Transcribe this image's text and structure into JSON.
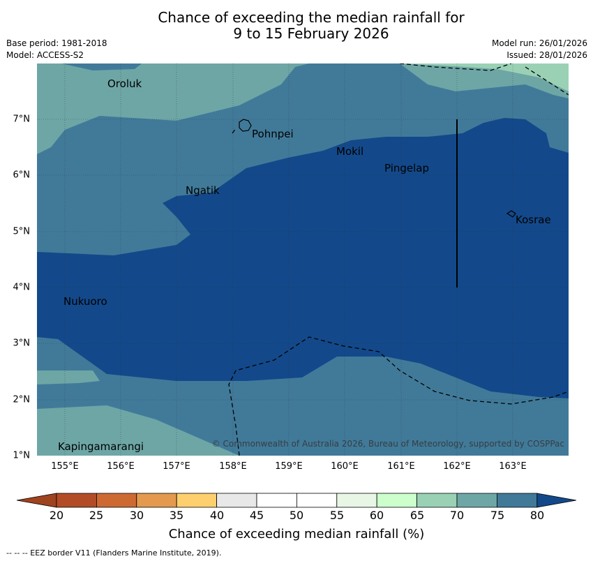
{
  "title_line1": "Chance of exceeding the median rainfall for",
  "title_line2": "9 to 15 February 2026",
  "base_period": "Base period: 1981-2018",
  "model": "Model: ACCESS-S2",
  "model_run": "Model run: 26/01/2026",
  "issued": "Issued: 28/01/2026",
  "places": [
    "Oroluk",
    "Pohnpei",
    "Mokil",
    "Pingelap",
    "Ngatik",
    "Kosrae",
    "Nukuoro",
    "Kapingamarangi"
  ],
  "copyright": "© Commonwealth of Australia 2026, Bureau of Meteorology, supported by COSPPac",
  "lat_labels": [
    "7°N",
    "6°N",
    "5°N",
    "4°N",
    "3°N",
    "2°N",
    "1°N"
  ],
  "lon_labels": [
    "155°E",
    "156°E",
    "157°E",
    "158°E",
    "159°E",
    "160°E",
    "161°E",
    "162°E",
    "163°E"
  ],
  "colorbar": {
    "ticks": [
      "20",
      "25",
      "30",
      "35",
      "40",
      "45",
      "50",
      "55",
      "60",
      "65",
      "70",
      "75",
      "80"
    ],
    "colors": [
      "#a0431f",
      "#b24c27",
      "#cd6a32",
      "#e39a4e",
      "#fdcf6e",
      "#e8e8e8",
      "#ffffff",
      "#ffffff",
      "#e8f6e6",
      "#ccffcc",
      "#9ad1b5",
      "#6ea6a6",
      "#417a99",
      "#13498a"
    ],
    "label": "Chance of exceeding median rainfall (%)"
  },
  "footnote": "--  --  -- EEZ border V11 (Flanders Marine Institute, 2019)."
}
